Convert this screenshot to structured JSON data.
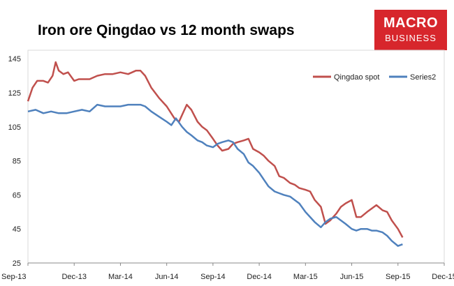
{
  "header": {
    "title": "Iron ore Qingdao vs 12 month swaps"
  },
  "logo": {
    "line1": "MACRO",
    "line2": "BUSINESS",
    "color": "#d7262c"
  },
  "chart_data": {
    "type": "line",
    "title": "Iron ore Qingdao vs 12 month swaps",
    "xlabel": "",
    "ylabel": "",
    "ylim": [
      25,
      150
    ],
    "yticks": [
      25,
      45,
      65,
      85,
      105,
      125,
      145
    ],
    "xticks": [
      "Sep-13",
      "Dec-13",
      "Mar-14",
      "Jun-14",
      "Sep-14",
      "Dec-14",
      "Mar-15",
      "Jun-15",
      "Sep-15",
      "Dec-15"
    ],
    "xlim": [
      0,
      27
    ],
    "legend_position": "top-right",
    "series": [
      {
        "name": "Qingdao spot",
        "color": "#c0504d",
        "x": [
          0,
          0.3,
          0.6,
          1.0,
          1.3,
          1.6,
          1.8,
          2.0,
          2.3,
          2.6,
          3.0,
          3.3,
          3.6,
          4.0,
          4.5,
          5.0,
          5.5,
          6.0,
          6.5,
          7.0,
          7.3,
          7.6,
          8.0,
          8.5,
          9.0,
          9.5,
          9.8,
          10.0,
          10.3,
          10.6,
          11.0,
          11.3,
          11.6,
          12.0,
          12.3,
          12.6,
          13.0,
          13.3,
          13.6,
          14.0,
          14.3,
          14.6,
          15.0,
          15.3,
          15.6,
          16.0,
          16.3,
          16.6,
          17.0,
          17.3,
          17.6,
          18.0,
          18.3,
          18.6,
          19.0,
          19.3,
          19.6,
          20.0,
          20.3,
          20.6,
          21.0,
          21.3,
          21.6,
          22.0,
          22.3,
          22.6,
          23.0,
          23.3,
          23.6,
          24.0,
          24.3
        ],
        "values": [
          120,
          128,
          132,
          132,
          131,
          135,
          143,
          138,
          136,
          137,
          132,
          133,
          133,
          133,
          135,
          136,
          136,
          137,
          136,
          138,
          138,
          135,
          128,
          122,
          117,
          110,
          108,
          112,
          118,
          115,
          108,
          105,
          103,
          98,
          94,
          91,
          92,
          95,
          96,
          97,
          98,
          92,
          90,
          88,
          85,
          82,
          76,
          75,
          72,
          71,
          69,
          68,
          67,
          62,
          58,
          48,
          50,
          54,
          58,
          60,
          62,
          52,
          52,
          55,
          57,
          59,
          56,
          55,
          50,
          45,
          40
        ]
      },
      {
        "name": "Series2",
        "color": "#4f81bd",
        "x": [
          0,
          0.5,
          1.0,
          1.5,
          2.0,
          2.5,
          3.0,
          3.5,
          4.0,
          4.5,
          5.0,
          5.5,
          6.0,
          6.5,
          7.0,
          7.3,
          7.6,
          8.0,
          8.5,
          9.0,
          9.3,
          9.6,
          10.0,
          10.3,
          10.6,
          11.0,
          11.3,
          11.6,
          12.0,
          12.3,
          12.6,
          13.0,
          13.3,
          13.6,
          14.0,
          14.3,
          14.6,
          15.0,
          15.3,
          15.6,
          16.0,
          16.3,
          16.6,
          17.0,
          17.3,
          17.6,
          18.0,
          18.3,
          18.6,
          19.0,
          19.3,
          19.6,
          20.0,
          20.3,
          20.6,
          21.0,
          21.3,
          21.6,
          22.0,
          22.3,
          22.6,
          23.0,
          23.3,
          23.6,
          24.0,
          24.3
        ],
        "values": [
          114,
          115,
          113,
          114,
          113,
          113,
          114,
          115,
          114,
          118,
          117,
          117,
          117,
          118,
          118,
          118,
          117,
          114,
          111,
          108,
          106,
          110,
          105,
          102,
          100,
          97,
          96,
          94,
          93,
          95,
          96,
          97,
          96,
          92,
          89,
          84,
          82,
          78,
          74,
          70,
          67,
          66,
          65,
          64,
          62,
          60,
          55,
          52,
          49,
          46,
          49,
          51,
          52,
          50,
          48,
          45,
          44,
          45,
          45,
          44,
          44,
          43,
          41,
          38,
          35,
          36
        ]
      }
    ]
  }
}
